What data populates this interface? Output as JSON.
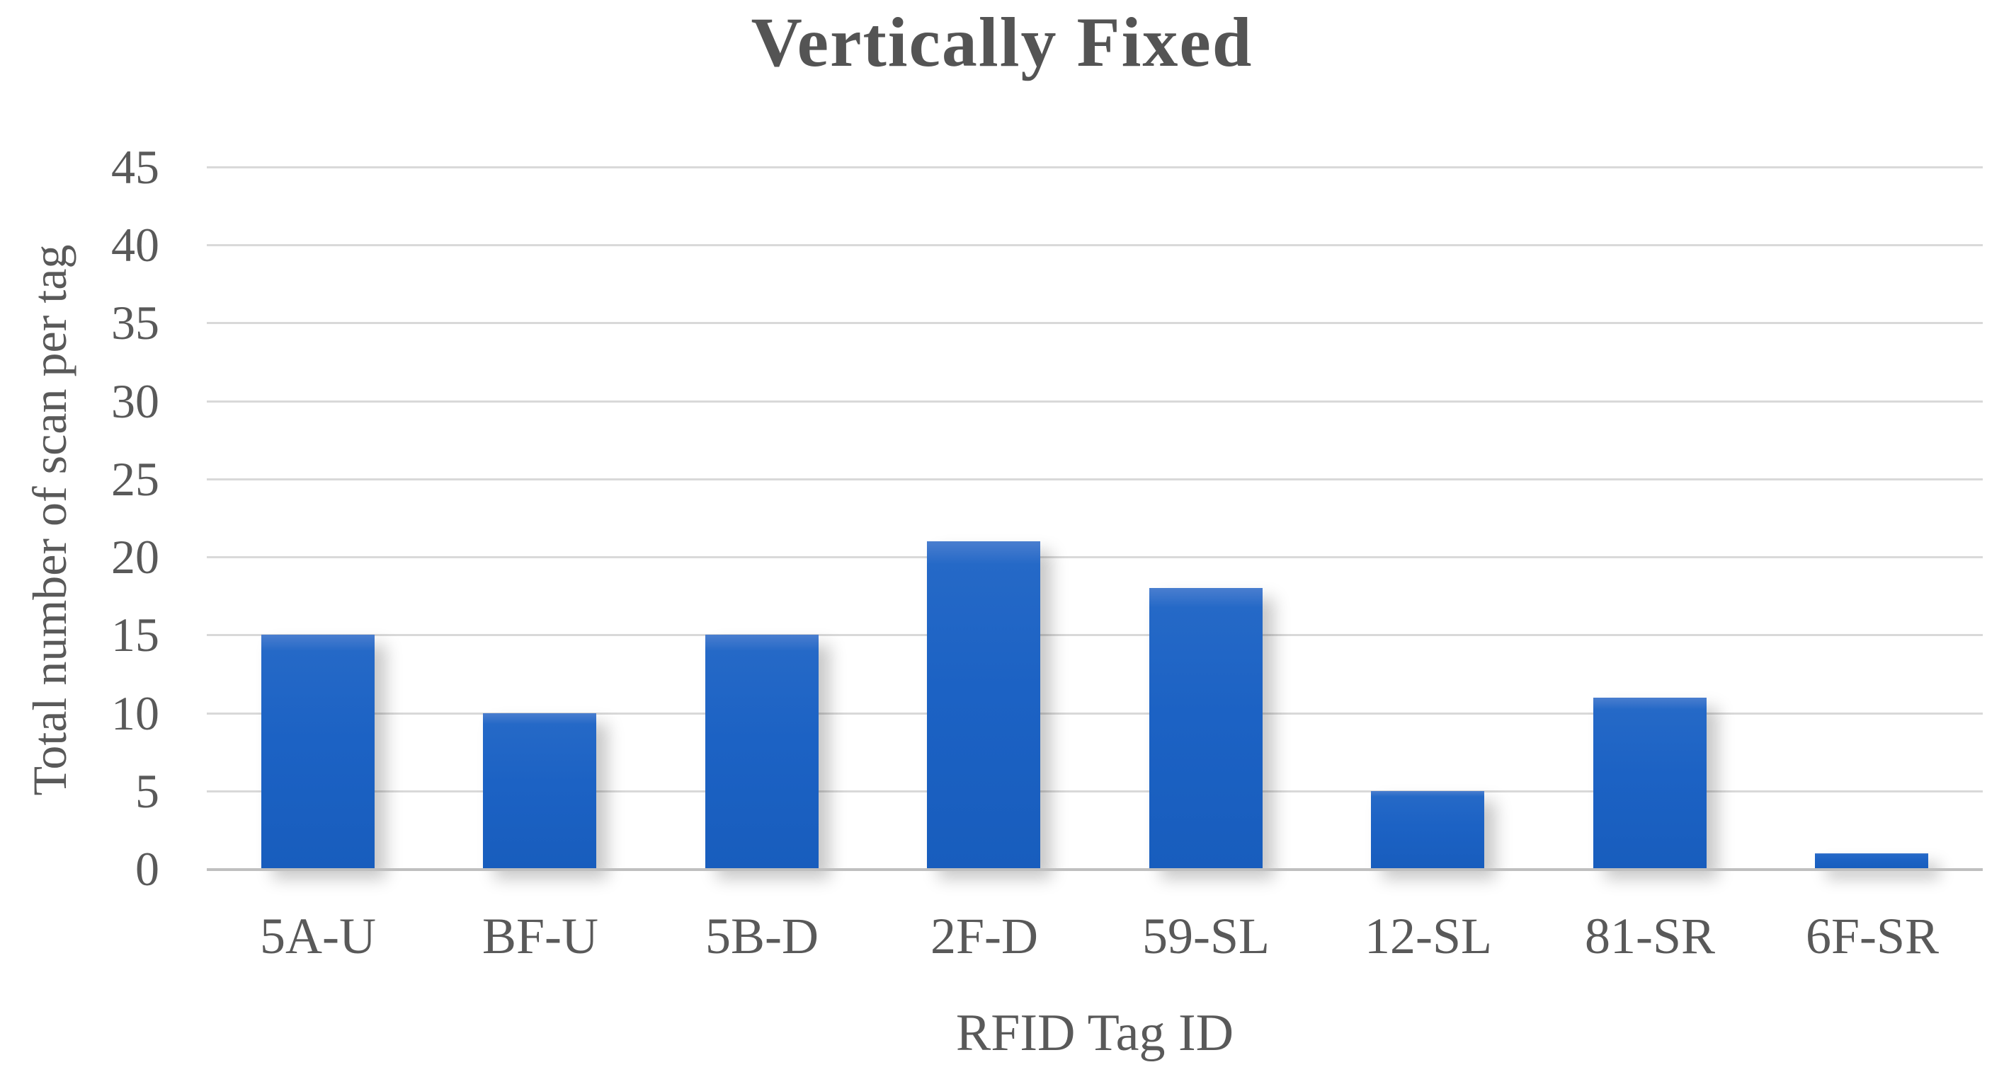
{
  "chart_data": {
    "type": "bar",
    "title": "Vertically Fixed",
    "xlabel": "RFID Tag ID",
    "ylabel": "Total number of scan per tag",
    "categories": [
      "5A-U",
      "BF-U",
      "5B-D",
      "2F-D",
      "59-SL",
      "12-SL",
      "81-SR",
      "6F-SR"
    ],
    "values": [
      15,
      10,
      15,
      21,
      18,
      5,
      11,
      1
    ],
    "ylim": [
      0,
      45
    ],
    "ytick_step": 5,
    "grid": "horizontal",
    "legend": "none",
    "colors": {
      "bar": "#1c62c4",
      "bar_top_highlight": "#4a7ecf",
      "gridline": "#d9d9d9",
      "axis_line": "#bfbfbf",
      "text": "#595959",
      "title": "#545454",
      "background": "#ffffff"
    }
  }
}
